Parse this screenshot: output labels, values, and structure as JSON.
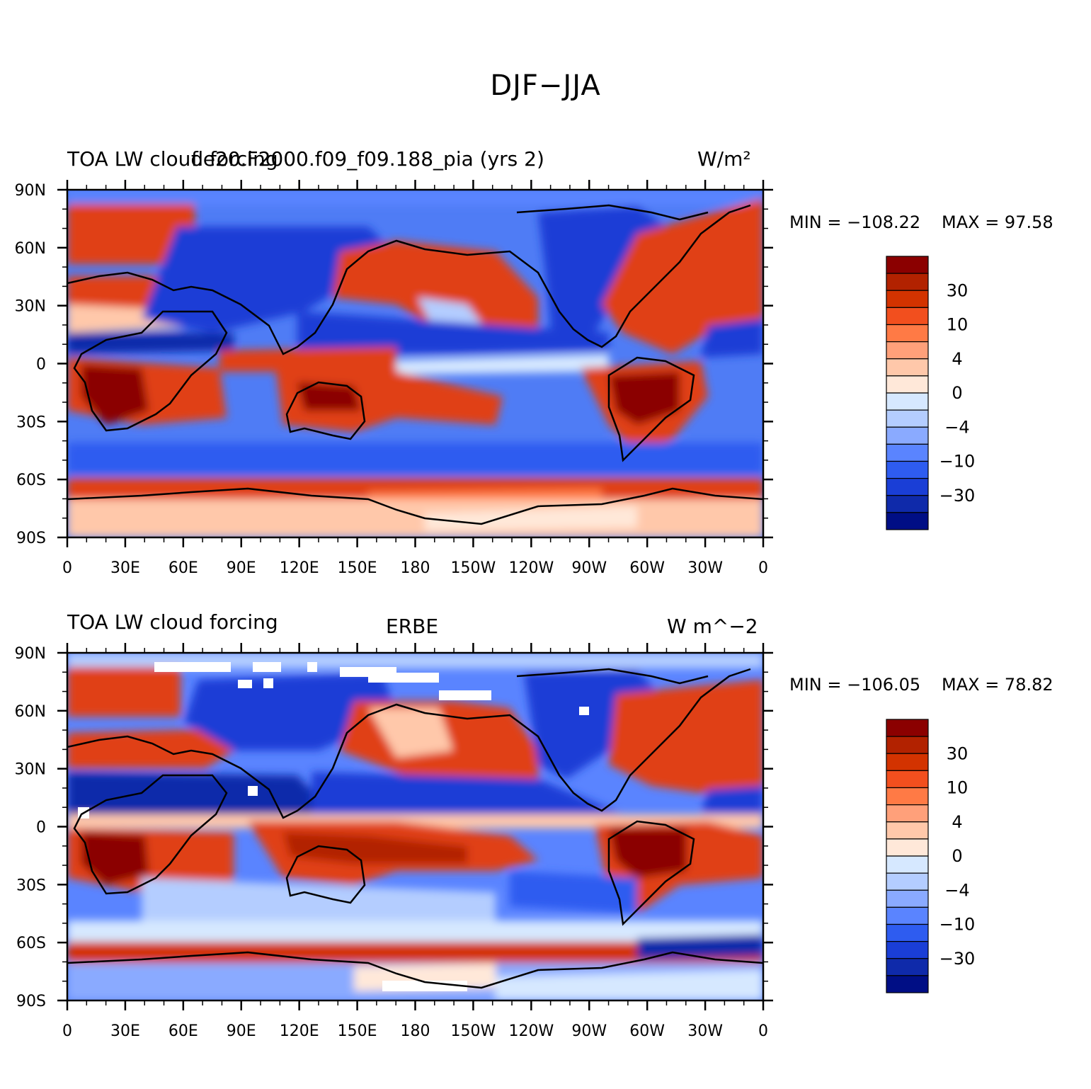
{
  "figure": {
    "title": "DJF−JJA"
  },
  "panels": [
    {
      "left_title": "TOA LW cloud forcing",
      "center_title": "f.e20.F2000.f09_f09.188_pia (yrs 2)",
      "units": "W/m²",
      "min_text": "MIN = −108.22",
      "max_text": "MAX =   97.58"
    },
    {
      "left_title": "TOA LW cloud forcing",
      "center_title": "ERBE",
      "units": "W m^−2",
      "min_text": "MIN = −106.05",
      "max_text": "MAX =  78.82"
    }
  ],
  "axes": {
    "lat_ticks": [
      "90N",
      "60N",
      "30N",
      "0",
      "30S",
      "60S",
      "90S"
    ],
    "lon_ticks": [
      "0",
      "30E",
      "60E",
      "90E",
      "120E",
      "150E",
      "180",
      "150W",
      "120W",
      "90W",
      "60W",
      "30W",
      "0"
    ]
  },
  "colorbar": {
    "colors": [
      "#8b0000",
      "#b22200",
      "#d33300",
      "#f24f1e",
      "#ff7a45",
      "#ffa07a",
      "#ffc8aa",
      "#ffe8d9",
      "#d6e8ff",
      "#b4cdff",
      "#8aaaff",
      "#5a84ff",
      "#2e5cf0",
      "#1a3ed6",
      "#0f2aaa",
      "#000e85"
    ],
    "labels": [
      "30",
      "10",
      "4",
      "0",
      "−4",
      "−10",
      "−30"
    ]
  }
}
